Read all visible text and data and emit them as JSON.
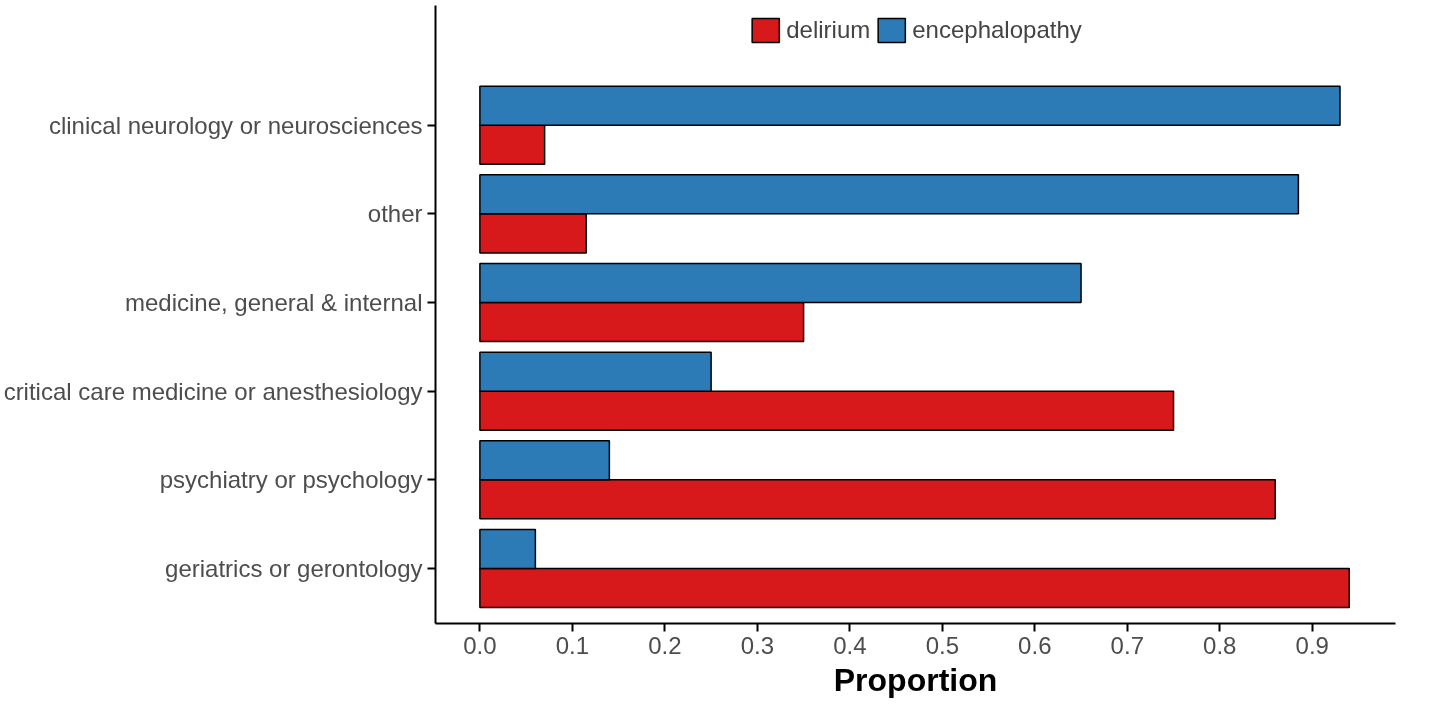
{
  "chart_data": {
    "type": "bar",
    "orientation": "horizontal",
    "xlabel": "Proportion",
    "categories": [
      "clinical neurology or neurosciences",
      "other",
      "medicine, general & internal",
      "critical care medicine or anesthesiology",
      "psychiatry or psychology",
      "geriatrics or gerontology"
    ],
    "series": [
      {
        "name": "delirium",
        "color": "#d7191c",
        "values": [
          0.07,
          0.115,
          0.35,
          0.75,
          0.86,
          0.94
        ]
      },
      {
        "name": "encephalopathy",
        "color": "#2c7bb6",
        "values": [
          0.93,
          0.885,
          0.65,
          0.25,
          0.14,
          0.06
        ]
      }
    ],
    "xlim": [
      -0.048,
      0.99
    ],
    "xticks": [
      {
        "value": 0,
        "label": "0.0"
      },
      0.1,
      0.2,
      0.3,
      0.4,
      0.5,
      0.6,
      0.7,
      0.8,
      0.9
    ],
    "grid": false,
    "legend": "top"
  }
}
